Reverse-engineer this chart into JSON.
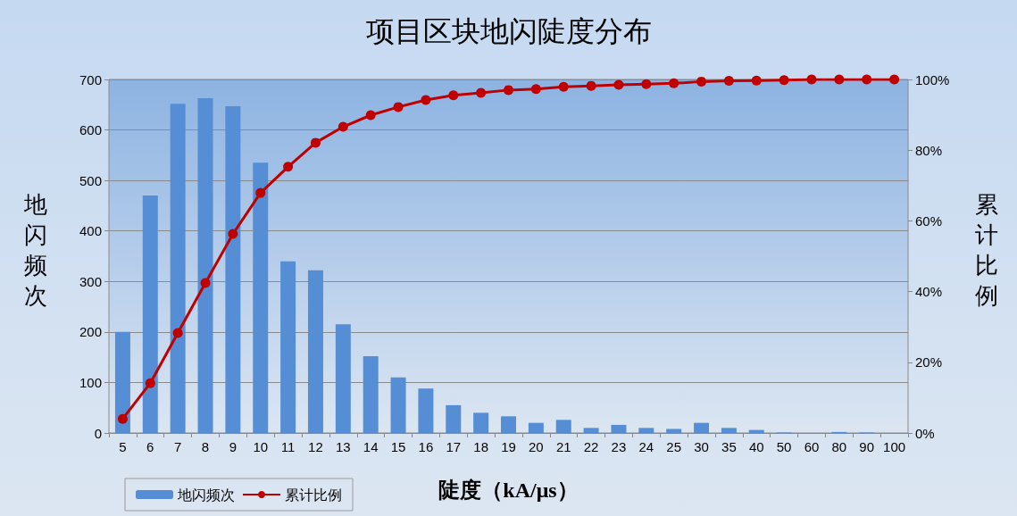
{
  "chart_data": {
    "type": "bar",
    "title": "项目区块地闪陡度分布",
    "xlabel": "陡度（kA/μs）",
    "ylabel": "地闪频次",
    "y2label": "累计比例",
    "categories": [
      "5",
      "6",
      "7",
      "8",
      "9",
      "10",
      "11",
      "12",
      "13",
      "14",
      "15",
      "16",
      "17",
      "18",
      "19",
      "20",
      "21",
      "22",
      "23",
      "24",
      "25",
      "30",
      "35",
      "40",
      "50",
      "60",
      "80",
      "90",
      "100"
    ],
    "series": [
      {
        "name": "地闪频次",
        "color": "#558ed5",
        "values": [
          200,
          470,
          652,
          663,
          647,
          535,
          340,
          322,
          215,
          152,
          110,
          88,
          55,
          40,
          33,
          20,
          26,
          10,
          16,
          10,
          8,
          20,
          10,
          6,
          1,
          0,
          2,
          1,
          0
        ]
      },
      {
        "name": "累计比例",
        "type": "line",
        "axis": "y2",
        "color": "#c00000",
        "values": [
          4.0,
          14.1,
          28.3,
          42.4,
          56.3,
          67.9,
          75.3,
          82.1,
          86.6,
          89.9,
          92.2,
          94.2,
          95.5,
          96.2,
          97.0,
          97.3,
          97.9,
          98.2,
          98.5,
          98.7,
          98.9,
          99.4,
          99.6,
          99.7,
          99.8,
          100,
          100,
          100,
          100
        ]
      }
    ],
    "ylim": [
      0,
      700
    ],
    "yticks": [
      0,
      100,
      200,
      300,
      400,
      500,
      600,
      700
    ],
    "y2lim": [
      0,
      100
    ],
    "y2ticks": [
      {
        "value": 0,
        "label": "0%"
      },
      {
        "value": 20,
        "label": "20%"
      },
      {
        "value": 40,
        "label": "40%"
      },
      {
        "value": 60,
        "label": "60%"
      },
      {
        "value": 80,
        "label": "80%"
      },
      {
        "value": 100,
        "label": "100%"
      }
    ],
    "grid": "y",
    "legend": "bottom left",
    "marker": "circle",
    "line_style": "solid"
  }
}
